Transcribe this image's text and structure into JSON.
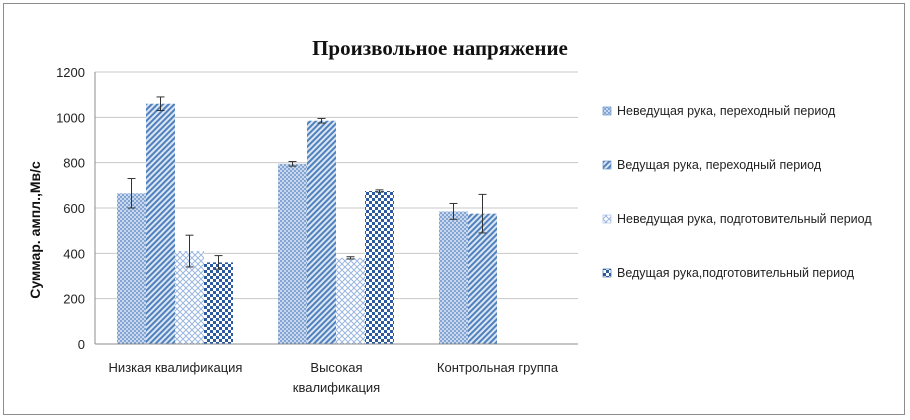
{
  "chart_data": {
    "type": "bar",
    "title": "Произвольное напряжение",
    "ylabel": "Суммар. ампл.,Мв/с",
    "xlabel": "",
    "ylim": [
      0,
      1200
    ],
    "yticks": [
      0,
      200,
      400,
      600,
      800,
      1000,
      1200
    ],
    "grid": true,
    "legend_position": "right",
    "categories": [
      "Низкая квалификация",
      "Высокая квалификация",
      "Контрольная группа"
    ],
    "series": [
      {
        "name": "Неведущая рука, переходный период",
        "color": "#4f81bd",
        "pattern": "dots",
        "values": [
          665,
          795,
          585
        ],
        "errors": [
          65,
          10,
          35
        ]
      },
      {
        "name": "Ведущая рука, переходный период",
        "color": "#4f81bd",
        "pattern": "diagonal",
        "values": [
          1060,
          985,
          575
        ],
        "errors": [
          30,
          10,
          85
        ]
      },
      {
        "name": "Неведущая рука, подготовительный период",
        "color": "#9bb7e0",
        "pattern": "crosshatch",
        "values": [
          410,
          380,
          null
        ],
        "errors": [
          70,
          5,
          null
        ]
      },
      {
        "name": "Ведущая рука,подготовительный период",
        "color": "#2c5aa0",
        "pattern": "checker",
        "values": [
          360,
          675,
          null
        ],
        "errors": [
          30,
          5,
          null
        ]
      }
    ]
  }
}
